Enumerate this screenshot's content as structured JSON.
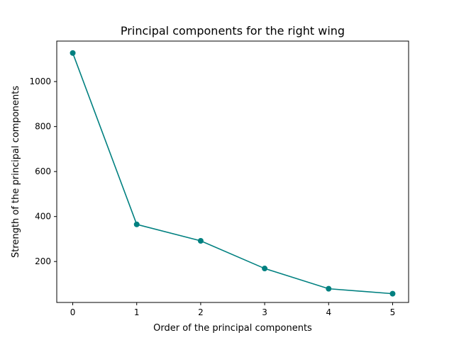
{
  "chart_data": {
    "type": "line",
    "title": "Principal components for the right wing",
    "xlabel": "Order of the principal components",
    "ylabel": "Strength of the principal components",
    "x": [
      0,
      1,
      2,
      3,
      4,
      5
    ],
    "series": [
      {
        "values": [
          1127,
          365,
          292,
          169,
          79,
          57
        ],
        "color": "#008080"
      }
    ],
    "xticks": [
      0,
      1,
      2,
      3,
      4,
      5
    ],
    "yticks": [
      200,
      400,
      600,
      800,
      1000
    ],
    "xlim": [
      -0.25,
      5.25
    ],
    "ylim": [
      18,
      1180
    ],
    "grid": false,
    "markers": true
  }
}
